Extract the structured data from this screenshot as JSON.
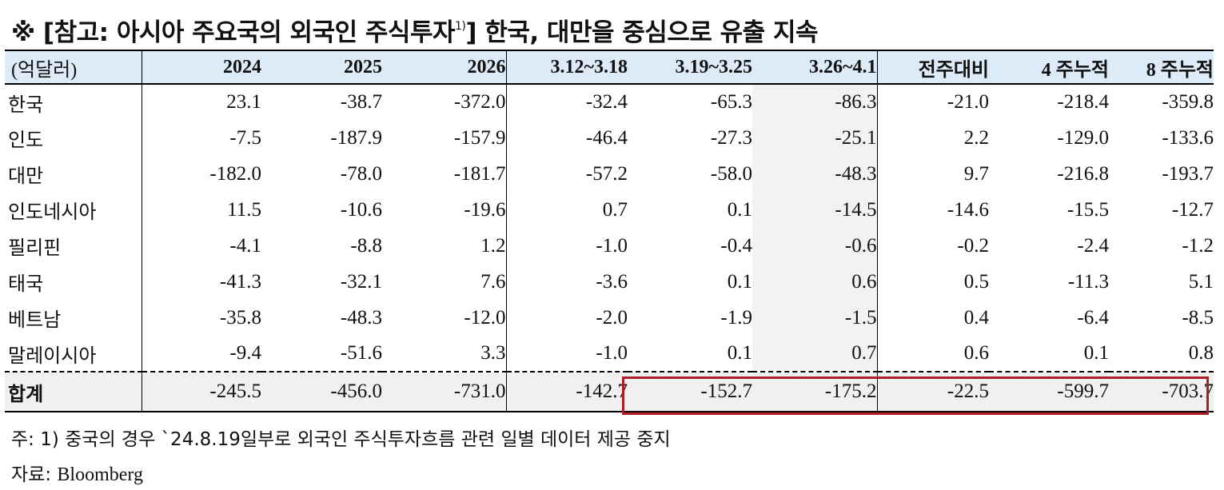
{
  "title": {
    "text": "※ [참고: 아시아 주요국의 외국인 주식투자",
    "sup": "1)",
    "text2": "] 한국, 대만을 중심으로 유출 지속"
  },
  "table": {
    "headers": [
      "(억달러)",
      "2024",
      "2025",
      "2026",
      "3.12~3.18",
      "3.19~3.25",
      "3.26~4.1",
      "전주대비",
      "4 주누적",
      "8 주누적"
    ],
    "rows": [
      [
        "한국",
        "23.1",
        "-38.7",
        "-372.0",
        "-32.4",
        "-65.3",
        "-86.3",
        "-21.0",
        "-218.4",
        "-359.8"
      ],
      [
        "인도",
        "-7.5",
        "-187.9",
        "-157.9",
        "-46.4",
        "-27.3",
        "-25.1",
        "2.2",
        "-129.0",
        "-133.6"
      ],
      [
        "대만",
        "-182.0",
        "-78.0",
        "-181.7",
        "-57.2",
        "-58.0",
        "-48.3",
        "9.7",
        "-216.8",
        "-193.7"
      ],
      [
        "인도네시아",
        "11.5",
        "-10.6",
        "-19.6",
        "0.7",
        "0.1",
        "-14.5",
        "-14.6",
        "-15.5",
        "-12.7"
      ],
      [
        "필리핀",
        "-4.1",
        "-8.8",
        "1.2",
        "-1.0",
        "-0.4",
        "-0.6",
        "-0.2",
        "-2.4",
        "-1.2"
      ],
      [
        "태국",
        "-41.3",
        "-32.1",
        "7.6",
        "-3.6",
        "0.1",
        "0.6",
        "0.5",
        "-11.3",
        "5.1"
      ],
      [
        "베트남",
        "-35.8",
        "-48.3",
        "-12.0",
        "-2.0",
        "-1.9",
        "-1.5",
        "0.4",
        "-6.4",
        "-8.5"
      ],
      [
        "말레이시아",
        "-9.4",
        "-51.6",
        "3.3",
        "-1.0",
        "0.1",
        "0.7",
        "0.6",
        "0.1",
        "0.8"
      ]
    ],
    "total": [
      "합계",
      "-245.5",
      "-456.0",
      "-731.0",
      "-142.7",
      "-152.7",
      "-175.2",
      "-22.5",
      "-599.7",
      "-703.7"
    ]
  },
  "notes": {
    "note_prefix": "주: 1) 중국의 경우 `24.8.19일부로 외국인 주식투자흐름 관련 일별 데이터 제공 중지",
    "source_label": "자료: ",
    "source_value": "Bloomberg"
  },
  "colors": {
    "header_bg": "#dcebf7",
    "highlight_border": "#b01e23",
    "shade_bg": "#f2f2f2"
  }
}
